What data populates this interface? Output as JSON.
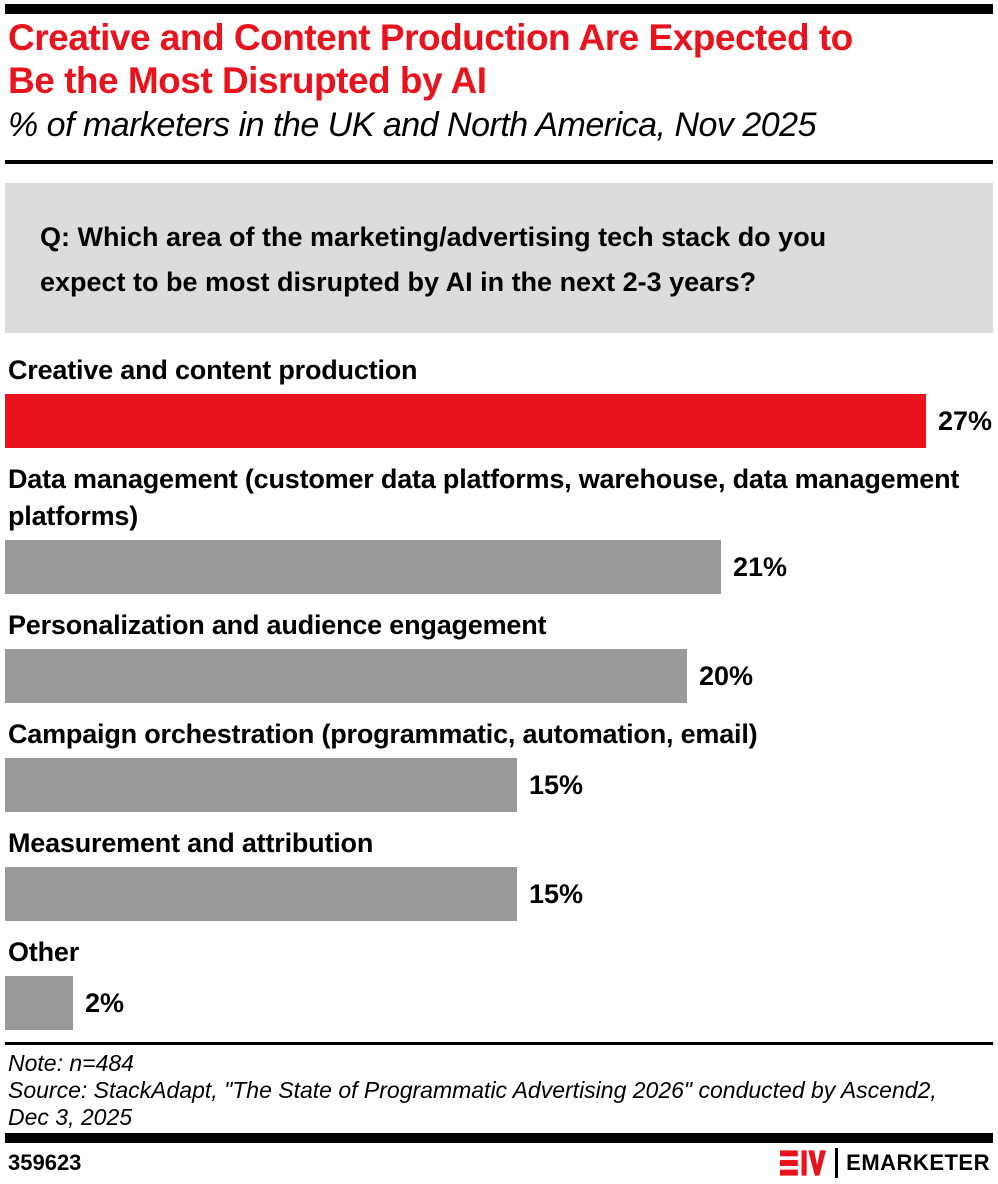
{
  "header": {
    "title_lines": [
      "Creative and Content Production Are Expected to",
      "Be the Most Disrupted by AI"
    ],
    "title": "Creative and Content Production Are Expected to Be the Most Disrupted by AI",
    "subtitle": "% of marketers in the UK and North America, Nov 2025"
  },
  "question": {
    "lines": [
      "Q: Which area of the marketing/advertising tech stack do you",
      "expect to be most disrupted by AI in the next 2-3 years?"
    ]
  },
  "chart_data": {
    "type": "bar",
    "orientation": "horizontal",
    "unit": "%",
    "title": "Creative and Content Production Are Expected to Be the Most Disrupted by AI",
    "subtitle": "% of marketers in the UK and North America, Nov 2025",
    "categories": [
      "Creative and content production",
      "Data management (customer data platforms, warehouse, data management platforms)",
      "Personalization and audience engagement",
      "Campaign orchestration (programmatic, automation, email)",
      "Measurement and attribution",
      "Other"
    ],
    "categories_wrapped": [
      [
        "Creative and content production"
      ],
      [
        "Data management (customer data platforms, warehouse, data management",
        "platforms)"
      ],
      [
        "Personalization and audience engagement"
      ],
      [
        "Campaign orchestration (programmatic, automation, email)"
      ],
      [
        "Measurement and attribution"
      ],
      [
        "Other"
      ]
    ],
    "values": [
      27,
      21,
      20,
      15,
      15,
      2
    ],
    "value_labels": [
      "27%",
      "21%",
      "20%",
      "15%",
      "15%",
      "2%"
    ],
    "bar_colors": [
      "#e8131d",
      "#999999",
      "#999999",
      "#999999",
      "#999999",
      "#999999"
    ],
    "xlim": [
      0,
      29
    ],
    "grid": false,
    "legend": "none"
  },
  "footnote": {
    "note": "Note: n=484",
    "source_lines": [
      "Source: StackAdapt, \"The State of Programmatic Advertising 2026\" conducted by Ascend2,",
      "Dec 3, 2025"
    ],
    "source_text": "Source: StackAdapt, \"The State of Programmatic Advertising 2026\" conducted by Ascend2, Dec 3, 2025"
  },
  "footer": {
    "chart_id": "359623",
    "brand": "EMARKETER",
    "logo_icon": "emarketer-em-icon"
  },
  "colors": {
    "accent_red": "#e8131d",
    "bar_gray": "#999999",
    "question_bg": "#dcdcdc",
    "black": "#000000"
  }
}
